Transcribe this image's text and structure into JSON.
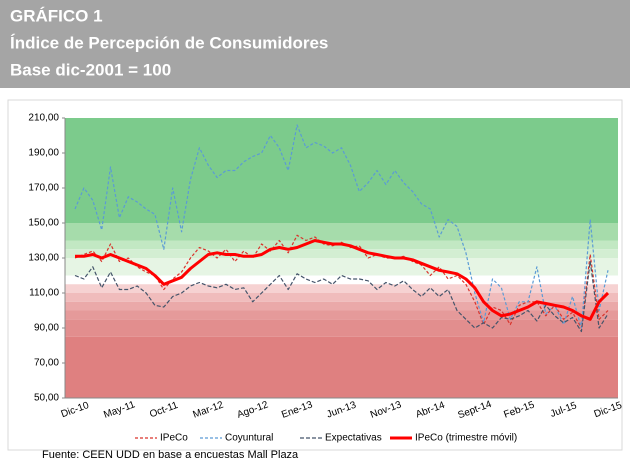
{
  "chart_data": {
    "type": "line",
    "title": "GRÁFICO 1",
    "subtitle": "Índice de Percepción de Consumidores",
    "note": "Base dic-2001 = 100",
    "source": "Fuente: CEEN UDD en base a encuestas Mall Plaza",
    "categories": [
      "Dic-10",
      null,
      null,
      null,
      null,
      "May-11",
      null,
      null,
      null,
      null,
      "Oct-11",
      null,
      null,
      null,
      null,
      "Mar-12",
      null,
      null,
      null,
      null,
      "Ago-12",
      null,
      null,
      null,
      null,
      "Ene-13",
      null,
      null,
      null,
      null,
      "Jun-13",
      null,
      null,
      null,
      null,
      "Nov-13",
      null,
      null,
      null,
      null,
      "Abr-14",
      null,
      null,
      null,
      null,
      "Sept-14",
      null,
      null,
      null,
      null,
      "Feb-15",
      null,
      null,
      null,
      null,
      "Jul-15",
      null,
      null,
      null,
      null,
      "Dic-15"
    ],
    "ylim": [
      50,
      210
    ],
    "yticks": [
      {
        "value": 50,
        "label": "50,00"
      },
      {
        "value": 70,
        "label": "70,00"
      },
      {
        "value": 90,
        "label": "90,00"
      },
      {
        "value": 110,
        "label": "110,00"
      },
      {
        "value": 130,
        "label": "130,00"
      },
      {
        "value": 150,
        "label": "150,00"
      },
      {
        "value": 170,
        "label": "170,00"
      },
      {
        "value": 190,
        "label": "190,00"
      },
      {
        "value": 210,
        "label": "210,00"
      }
    ],
    "bands": [
      {
        "from": 150,
        "to": 210,
        "color": "#7ccb8c"
      },
      {
        "from": 140,
        "to": 150,
        "color": "#a6dcab"
      },
      {
        "from": 135,
        "to": 140,
        "color": "#c2e8c3"
      },
      {
        "from": 130,
        "to": 135,
        "color": "#d3eed2"
      },
      {
        "from": 120,
        "to": 130,
        "color": "#e6f5e4"
      },
      {
        "from": 110,
        "to": 115,
        "color": "#f6d2d2"
      },
      {
        "from": 105,
        "to": 110,
        "color": "#f0bcbc"
      },
      {
        "from": 100,
        "to": 105,
        "color": "#eaa9a9"
      },
      {
        "from": 95,
        "to": 100,
        "color": "#e59a9a"
      },
      {
        "from": 85,
        "to": 95,
        "color": "#e28e8e"
      },
      {
        "from": 50,
        "to": 85,
        "color": "#df8080"
      }
    ],
    "series": [
      {
        "name": "IPeCo",
        "color": "#d9332b",
        "dash": "3 2",
        "width": 1.2,
        "values": [
          130,
          132,
          134,
          128,
          138,
          128,
          130,
          125,
          122,
          120,
          112,
          118,
          122,
          130,
          136,
          134,
          130,
          135,
          128,
          134,
          130,
          138,
          134,
          140,
          133,
          143,
          140,
          142,
          138,
          137,
          139,
          136,
          137,
          130,
          132,
          130,
          130,
          131,
          128,
          126,
          120,
          125,
          118,
          120,
          115,
          105,
          92,
          102,
          100,
          92,
          103,
          105,
          105,
          97,
          103,
          95,
          99,
          90,
          132,
          95,
          100
        ]
      },
      {
        "name": "Coyuntural",
        "color": "#5b9bd5",
        "dash": "3 2",
        "width": 1.2,
        "values": [
          158,
          170,
          163,
          146,
          182,
          153,
          165,
          162,
          158,
          155,
          135,
          170,
          145,
          175,
          193,
          183,
          176,
          180,
          180,
          185,
          188,
          190,
          200,
          193,
          180,
          206,
          193,
          196,
          194,
          190,
          193,
          183,
          168,
          173,
          180,
          172,
          180,
          173,
          168,
          161,
          158,
          142,
          152,
          148,
          133,
          110,
          93,
          118,
          113,
          95,
          105,
          105,
          125,
          98,
          103,
          92,
          108,
          90,
          152,
          100,
          123
        ]
      },
      {
        "name": "Expectativas",
        "color": "#44546a",
        "dash": "4 2",
        "width": 1.2,
        "values": [
          120,
          118,
          125,
          113,
          122,
          112,
          112,
          114,
          110,
          103,
          102,
          108,
          110,
          114,
          116,
          114,
          113,
          115,
          112,
          113,
          105,
          110,
          115,
          120,
          112,
          121,
          118,
          116,
          118,
          115,
          120,
          118,
          118,
          117,
          112,
          116,
          114,
          117,
          112,
          108,
          113,
          108,
          112,
          100,
          95,
          90,
          93,
          90,
          96,
          95,
          97,
          100,
          94,
          103,
          97,
          93,
          96,
          88,
          128,
          90,
          98
        ]
      },
      {
        "name": "IPeCo (trimestre móvil)",
        "color": "#ff0000",
        "dash": "none",
        "width": 3,
        "values": [
          131,
          131,
          132,
          130,
          132,
          130,
          128,
          126,
          124,
          120,
          115,
          117,
          119,
          124,
          128,
          132,
          133,
          132,
          132,
          131,
          131,
          132,
          135,
          136,
          135,
          136,
          138,
          140,
          139,
          138,
          138,
          137,
          135,
          133,
          132,
          131,
          130,
          130,
          129,
          127,
          125,
          123,
          122,
          121,
          118,
          113,
          105,
          100,
          97,
          98,
          100,
          102,
          105,
          104,
          103,
          102,
          100,
          97,
          95,
          105,
          110
        ]
      }
    ]
  }
}
